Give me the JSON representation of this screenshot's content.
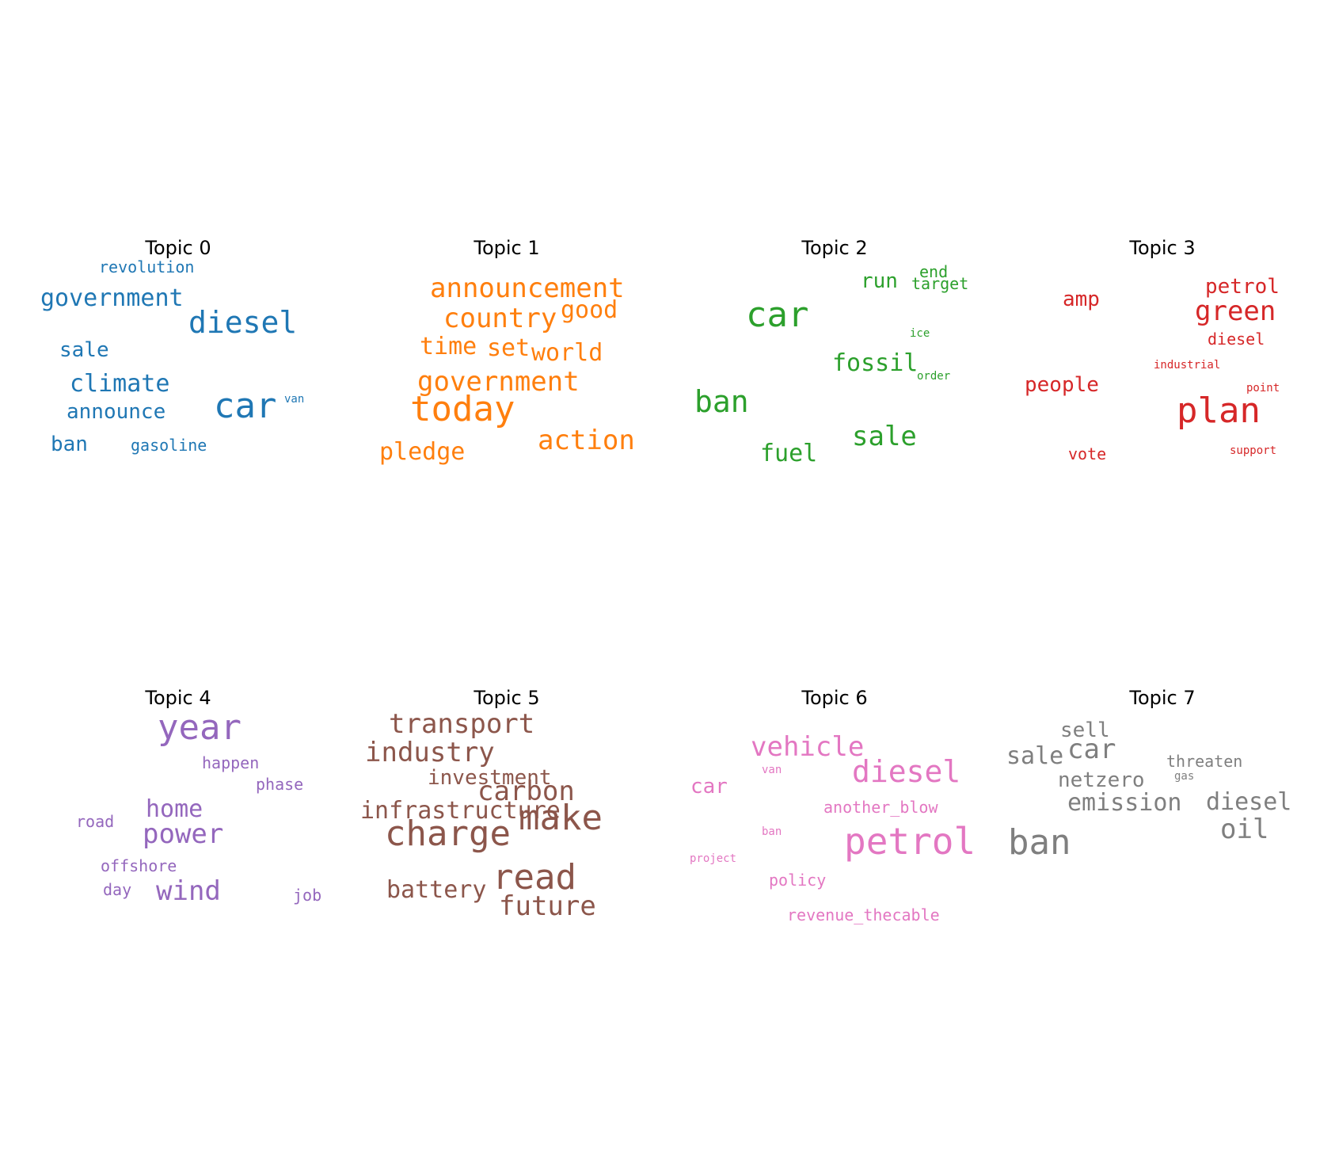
{
  "chart_data": [
    {
      "type": "wordcloud",
      "title": "Topic 0",
      "color": "#1f77b4",
      "words": [
        {
          "text": "revolution",
          "size": 2
        },
        {
          "text": "government",
          "size": 4
        },
        {
          "text": "diesel",
          "size": 6
        },
        {
          "text": "sale",
          "size": 3
        },
        {
          "text": "climate",
          "size": 4
        },
        {
          "text": "announce",
          "size": 3
        },
        {
          "text": "car",
          "size": 7
        },
        {
          "text": "van",
          "size": 1
        },
        {
          "text": "ban",
          "size": 3
        },
        {
          "text": "gasoline",
          "size": 2
        }
      ]
    },
    {
      "type": "wordcloud",
      "title": "Topic 1",
      "color": "#ff7f0e",
      "words": [
        {
          "text": "announcement",
          "size": 5
        },
        {
          "text": "country",
          "size": 5
        },
        {
          "text": "good",
          "size": 4
        },
        {
          "text": "time",
          "size": 4
        },
        {
          "text": "set",
          "size": 4
        },
        {
          "text": "world",
          "size": 4
        },
        {
          "text": "government",
          "size": 5
        },
        {
          "text": "today",
          "size": 7
        },
        {
          "text": "action",
          "size": 5
        },
        {
          "text": "pledge",
          "size": 4
        }
      ]
    },
    {
      "type": "wordcloud",
      "title": "Topic 2",
      "color": "#2ca02c",
      "words": [
        {
          "text": "run",
          "size": 3
        },
        {
          "text": "end",
          "size": 2
        },
        {
          "text": "target",
          "size": 2
        },
        {
          "text": "car",
          "size": 7
        },
        {
          "text": "ice",
          "size": 1
        },
        {
          "text": "fossil",
          "size": 4
        },
        {
          "text": "order",
          "size": 1
        },
        {
          "text": "ban",
          "size": 6
        },
        {
          "text": "sale",
          "size": 5
        },
        {
          "text": "fuel",
          "size": 4
        }
      ]
    },
    {
      "type": "wordcloud",
      "title": "Topic 3",
      "color": "#d62728",
      "words": [
        {
          "text": "petrol",
          "size": 3
        },
        {
          "text": "amp",
          "size": 3
        },
        {
          "text": "green",
          "size": 5
        },
        {
          "text": "diesel",
          "size": 2
        },
        {
          "text": "industrial",
          "size": 1
        },
        {
          "text": "people",
          "size": 3
        },
        {
          "text": "point",
          "size": 1
        },
        {
          "text": "plan",
          "size": 7
        },
        {
          "text": "vote",
          "size": 2
        },
        {
          "text": "support",
          "size": 1
        }
      ]
    },
    {
      "type": "wordcloud",
      "title": "Topic 4",
      "color": "#9467bd",
      "words": [
        {
          "text": "year",
          "size": 7
        },
        {
          "text": "happen",
          "size": 2
        },
        {
          "text": "phase",
          "size": 2
        },
        {
          "text": "home",
          "size": 4
        },
        {
          "text": "road",
          "size": 2
        },
        {
          "text": "power",
          "size": 5
        },
        {
          "text": "offshore",
          "size": 2
        },
        {
          "text": "day",
          "size": 2
        },
        {
          "text": "wind",
          "size": 5
        },
        {
          "text": "job",
          "size": 2
        }
      ]
    },
    {
      "type": "wordcloud",
      "title": "Topic 5",
      "color": "#8c564b",
      "words": [
        {
          "text": "transport",
          "size": 5
        },
        {
          "text": "industry",
          "size": 5
        },
        {
          "text": "investment",
          "size": 3
        },
        {
          "text": "carbon",
          "size": 5
        },
        {
          "text": "infrastructure",
          "size": 4
        },
        {
          "text": "make",
          "size": 7
        },
        {
          "text": "charge",
          "size": 7
        },
        {
          "text": "read",
          "size": 7
        },
        {
          "text": "battery",
          "size": 4
        },
        {
          "text": "future",
          "size": 5
        }
      ]
    },
    {
      "type": "wordcloud",
      "title": "Topic 6",
      "color": "#e377c2",
      "words": [
        {
          "text": "vehicle",
          "size": 5
        },
        {
          "text": "van",
          "size": 1
        },
        {
          "text": "car",
          "size": 3
        },
        {
          "text": "diesel",
          "size": 6
        },
        {
          "text": "another_blow",
          "size": 2
        },
        {
          "text": "ban",
          "size": 1
        },
        {
          "text": "project",
          "size": 1
        },
        {
          "text": "petrol",
          "size": 8
        },
        {
          "text": "policy",
          "size": 2
        },
        {
          "text": "revenue_thecable",
          "size": 2
        }
      ]
    },
    {
      "type": "wordcloud",
      "title": "Topic 7",
      "color": "#7f7f7f",
      "words": [
        {
          "text": "sell",
          "size": 3
        },
        {
          "text": "sale",
          "size": 4
        },
        {
          "text": "car",
          "size": 5
        },
        {
          "text": "threaten",
          "size": 2
        },
        {
          "text": "gas",
          "size": 1
        },
        {
          "text": "netzero",
          "size": 3
        },
        {
          "text": "emission",
          "size": 4
        },
        {
          "text": "diesel",
          "size": 4
        },
        {
          "text": "oil",
          "size": 5
        },
        {
          "text": "ban",
          "size": 7
        }
      ]
    }
  ]
}
